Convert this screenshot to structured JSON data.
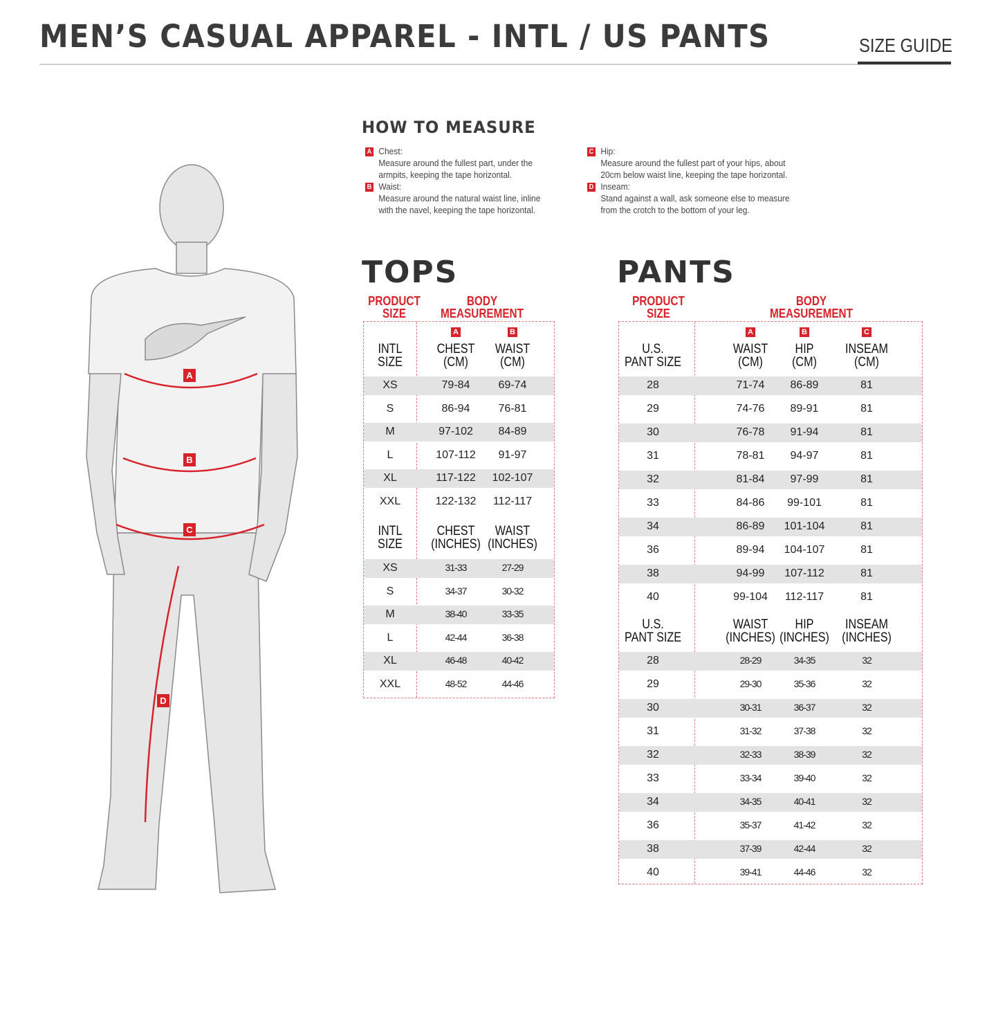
{
  "header": {
    "title": "MEN’S CASUAL APPAREL - INTL / US PANTS",
    "size_guide": "SIZE GUIDE"
  },
  "how_to_measure": {
    "title": "HOW TO MEASURE",
    "items": [
      {
        "letter": "A",
        "label": "Chest:",
        "lines": [
          "Measure around the fullest part, under the",
          "armpits, keeping the tape horizontal."
        ]
      },
      {
        "letter": "B",
        "label": "Waist:",
        "lines": [
          "Measure around the natural waist line, inline",
          "with the navel, keeping the tape horizontal."
        ]
      },
      {
        "letter": "C",
        "label": "Hip:",
        "lines": [
          "Measure around the fullest part of your hips, about",
          "20cm below waist line, keeping the tape horizontal."
        ]
      },
      {
        "letter": "D",
        "label": "Inseam:",
        "lines": [
          "Stand against a wall, ask someone else to measure",
          "from the crotch to the bottom of your leg."
        ]
      }
    ]
  },
  "figure": {
    "labels": [
      "A",
      "B",
      "C",
      "D"
    ],
    "accent": "#d8222a"
  },
  "tops": {
    "title": "TOPS",
    "product_size": [
      "PRODUCT",
      "SIZE"
    ],
    "body_measurement": [
      "BODY",
      "MEASUREMENT"
    ],
    "letters": [
      "A",
      "B"
    ],
    "cm_headers": [
      [
        "INTL",
        "SIZE"
      ],
      [
        "CHEST",
        "(CM)"
      ],
      [
        "WAIST",
        "(CM)"
      ]
    ],
    "cm_rows": [
      [
        "XS",
        "79-84",
        "69-74"
      ],
      [
        "S",
        "86-94",
        "76-81"
      ],
      [
        "M",
        "97-102",
        "84-89"
      ],
      [
        "L",
        "107-112",
        "91-97"
      ],
      [
        "XL",
        "117-122",
        "102-107"
      ],
      [
        "XXL",
        "122-132",
        "112-117"
      ]
    ],
    "in_headers": [
      [
        "INTL",
        "SIZE"
      ],
      [
        "CHEST",
        "(INCHES)"
      ],
      [
        "WAIST",
        "(INCHES)"
      ]
    ],
    "in_rows": [
      [
        "XS",
        "31-33",
        "27-29"
      ],
      [
        "S",
        "34-37",
        "30-32"
      ],
      [
        "M",
        "38-40",
        "33-35"
      ],
      [
        "L",
        "42-44",
        "36-38"
      ],
      [
        "XL",
        "46-48",
        "40-42"
      ],
      [
        "XXL",
        "48-52",
        "44-46"
      ]
    ]
  },
  "pants": {
    "title": "PANTS",
    "product_size": [
      "PRODUCT",
      "SIZE"
    ],
    "body_measurement": [
      "BODY",
      "MEASUREMENT"
    ],
    "letters": [
      "A",
      "B",
      "C"
    ],
    "cm_headers": [
      [
        "U.S.",
        "PANT SIZE"
      ],
      [
        "WAIST",
        "(CM)"
      ],
      [
        "HIP",
        "(CM)"
      ],
      [
        "INSEAM",
        "(CM)"
      ]
    ],
    "cm_rows": [
      [
        "28",
        "71-74",
        "86-89",
        "81"
      ],
      [
        "29",
        "74-76",
        "89-91",
        "81"
      ],
      [
        "30",
        "76-78",
        "91-94",
        "81"
      ],
      [
        "31",
        "78-81",
        "94-97",
        "81"
      ],
      [
        "32",
        "81-84",
        "97-99",
        "81"
      ],
      [
        "33",
        "84-86",
        "99-101",
        "81"
      ],
      [
        "34",
        "86-89",
        "101-104",
        "81"
      ],
      [
        "36",
        "89-94",
        "104-107",
        "81"
      ],
      [
        "38",
        "94-99",
        "107-112",
        "81"
      ],
      [
        "40",
        "99-104",
        "112-117",
        "81"
      ]
    ],
    "in_headers": [
      [
        "U.S.",
        "PANT SIZE"
      ],
      [
        "WAIST",
        "(INCHES)"
      ],
      [
        "HIP",
        "(INCHES)"
      ],
      [
        "INSEAM",
        "(INCHES)"
      ]
    ],
    "in_rows": [
      [
        "28",
        "28-29",
        "34-35",
        "32"
      ],
      [
        "29",
        "29-30",
        "35-36",
        "32"
      ],
      [
        "30",
        "30-31",
        "36-37",
        "32"
      ],
      [
        "31",
        "31-32",
        "37-38",
        "32"
      ],
      [
        "32",
        "32-33",
        "38-39",
        "32"
      ],
      [
        "33",
        "33-34",
        "39-40",
        "32"
      ],
      [
        "34",
        "34-35",
        "40-41",
        "32"
      ],
      [
        "36",
        "35-37",
        "41-42",
        "32"
      ],
      [
        "38",
        "37-39",
        "42-44",
        "32"
      ],
      [
        "40",
        "39-41",
        "44-46",
        "32"
      ]
    ]
  }
}
